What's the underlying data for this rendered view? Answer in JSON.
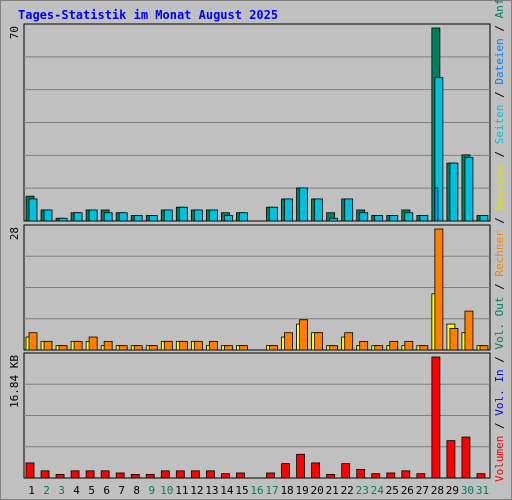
{
  "title": "Tages-Statistik im Monat August 2025",
  "chart_data": [
    {
      "type": "bar",
      "panel": "top",
      "ymax_label": "70",
      "ylim": [
        0,
        70
      ],
      "categories": [
        "1",
        "2",
        "3",
        "4",
        "5",
        "6",
        "7",
        "8",
        "9",
        "10",
        "11",
        "12",
        "13",
        "14",
        "15",
        "16",
        "17",
        "18",
        "19",
        "20",
        "21",
        "22",
        "23",
        "24",
        "25",
        "26",
        "27",
        "28",
        "29",
        "30",
        "31"
      ],
      "series": [
        {
          "name": "Anfragen",
          "color": "#008060",
          "values": [
            9,
            4,
            1,
            3,
            4,
            4,
            3,
            2,
            2,
            4,
            5,
            4,
            4,
            3,
            3,
            0,
            5,
            8,
            12,
            8,
            3,
            8,
            4,
            2,
            2,
            4,
            2,
            70,
            21,
            24,
            2
          ]
        },
        {
          "name": "Dateien",
          "color": "#00c0e0",
          "values": [
            8,
            4,
            1,
            3,
            4,
            3,
            3,
            2,
            2,
            4,
            5,
            4,
            4,
            2,
            3,
            0,
            5,
            8,
            12,
            8,
            1,
            8,
            3,
            2,
            2,
            3,
            2,
            52,
            21,
            23,
            2
          ]
        },
        {
          "name": "Seiten",
          "color": "#00a0ff",
          "values": [
            0,
            0,
            0,
            0,
            0,
            0,
            0,
            0,
            0,
            0,
            0,
            0,
            0,
            0,
            0,
            0,
            0,
            0,
            0,
            0,
            0,
            0,
            0,
            0,
            0,
            0,
            0,
            12,
            0,
            0,
            0
          ]
        }
      ],
      "legend": [
        "Anfragen",
        "Dateien",
        "Seiten"
      ]
    },
    {
      "type": "bar",
      "panel": "middle",
      "ymax_label": "28",
      "ylim": [
        0,
        28
      ],
      "categories": [
        "1",
        "2",
        "3",
        "4",
        "5",
        "6",
        "7",
        "8",
        "9",
        "10",
        "11",
        "12",
        "13",
        "14",
        "15",
        "16",
        "17",
        "18",
        "19",
        "20",
        "21",
        "22",
        "23",
        "24",
        "25",
        "26",
        "27",
        "28",
        "29",
        "30",
        "31"
      ],
      "series": [
        {
          "name": "Besuche",
          "color": "#ffff00",
          "values": [
            3,
            2,
            1,
            2,
            2,
            1,
            1,
            1,
            1,
            2,
            2,
            2,
            1,
            1,
            1,
            0,
            1,
            3,
            6,
            4,
            1,
            3,
            1,
            1,
            1,
            1,
            1,
            13,
            6,
            4,
            1
          ]
        },
        {
          "name": "Rechner",
          "color": "#ff8000",
          "values": [
            4,
            2,
            1,
            2,
            3,
            2,
            1,
            1,
            1,
            2,
            2,
            2,
            2,
            1,
            1,
            0,
            1,
            4,
            7,
            4,
            1,
            4,
            2,
            1,
            2,
            2,
            1,
            28,
            5,
            9,
            1
          ]
        }
      ],
      "legend": [
        "Besuche",
        "Rechner"
      ]
    },
    {
      "type": "bar",
      "panel": "bottom",
      "ymax_label": "16.84 KB",
      "ylim": [
        0,
        16.84
      ],
      "unit": "KB",
      "categories": [
        "1",
        "2",
        "3",
        "4",
        "5",
        "6",
        "7",
        "8",
        "9",
        "10",
        "11",
        "12",
        "13",
        "14",
        "15",
        "16",
        "17",
        "18",
        "19",
        "20",
        "21",
        "22",
        "23",
        "24",
        "25",
        "26",
        "27",
        "28",
        "29",
        "30",
        "31"
      ],
      "series": [
        {
          "name": "Volumen",
          "color": "#ff0000",
          "values": [
            2.1,
            1.0,
            0.5,
            1.0,
            1.0,
            1.0,
            0.7,
            0.5,
            0.5,
            1.0,
            1.0,
            1.0,
            1.0,
            0.6,
            0.7,
            0,
            0.7,
            2.0,
            3.3,
            2.1,
            0.5,
            2.0,
            1.2,
            0.6,
            0.7,
            1.0,
            0.6,
            16.84,
            5.2,
            5.7,
            0.6
          ]
        }
      ],
      "legend": [
        "Volumen",
        "Vol. In",
        "Vol. Out"
      ]
    }
  ],
  "right_legend": [
    {
      "text": "Volumen",
      "color": "#ff0000"
    },
    {
      "text": " / ",
      "color": "#000000"
    },
    {
      "text": "Vol. In",
      "color": "#0000ff"
    },
    {
      "text": " / ",
      "color": "#000000"
    },
    {
      "text": "Vol. Out",
      "color": "#008060"
    },
    {
      "text": " / ",
      "color": "#000000"
    },
    {
      "text": "Rechner",
      "color": "#ff8000"
    },
    {
      "text": " / ",
      "color": "#000000"
    },
    {
      "text": "Besuche",
      "color": "#e0e000"
    },
    {
      "text": " / ",
      "color": "#000000"
    },
    {
      "text": "Seiten",
      "color": "#00c0e0"
    },
    {
      "text": " / ",
      "color": "#000000"
    },
    {
      "text": "Dateien",
      "color": "#0080ff"
    },
    {
      "text": " / ",
      "color": "#000000"
    },
    {
      "text": "Anfragen",
      "color": "#008060"
    }
  ],
  "weekend_days": [
    "2",
    "3",
    "9",
    "10",
    "16",
    "17",
    "23",
    "24",
    "30",
    "31"
  ]
}
